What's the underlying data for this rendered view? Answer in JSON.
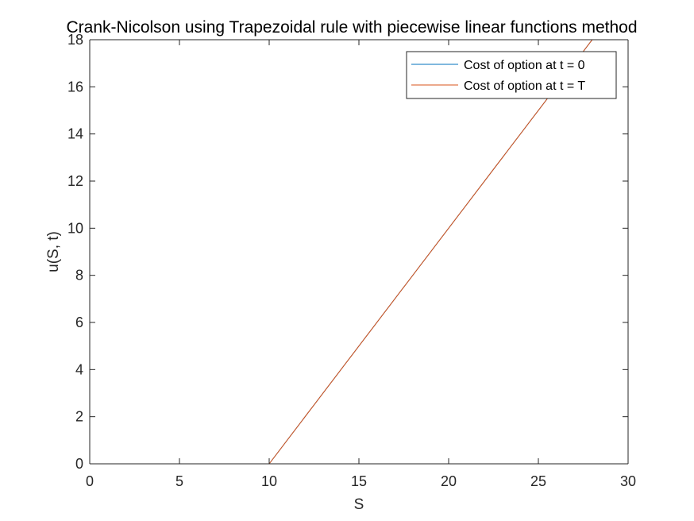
{
  "chart_data": {
    "type": "line",
    "title": "Crank-Nicolson using Trapezoidal rule with piecewise linear functions method",
    "xlabel": "S",
    "ylabel": "u(S, t)",
    "xlim": [
      0,
      30
    ],
    "ylim": [
      0,
      18
    ],
    "xticks": [
      0,
      5,
      10,
      15,
      20,
      25,
      30
    ],
    "yticks": [
      0,
      2,
      4,
      6,
      8,
      10,
      12,
      14,
      16,
      18
    ],
    "grid": false,
    "legend_position": "top-right",
    "series": [
      {
        "name": "Cost of option at t = 0",
        "color": "#0072BD",
        "x": [
          0,
          10,
          30
        ],
        "y": [
          0,
          0,
          20
        ]
      },
      {
        "name": "Cost of option at t = T",
        "color": "#D95319",
        "x": [
          0,
          10,
          30
        ],
        "y": [
          0,
          0,
          20
        ]
      }
    ]
  }
}
